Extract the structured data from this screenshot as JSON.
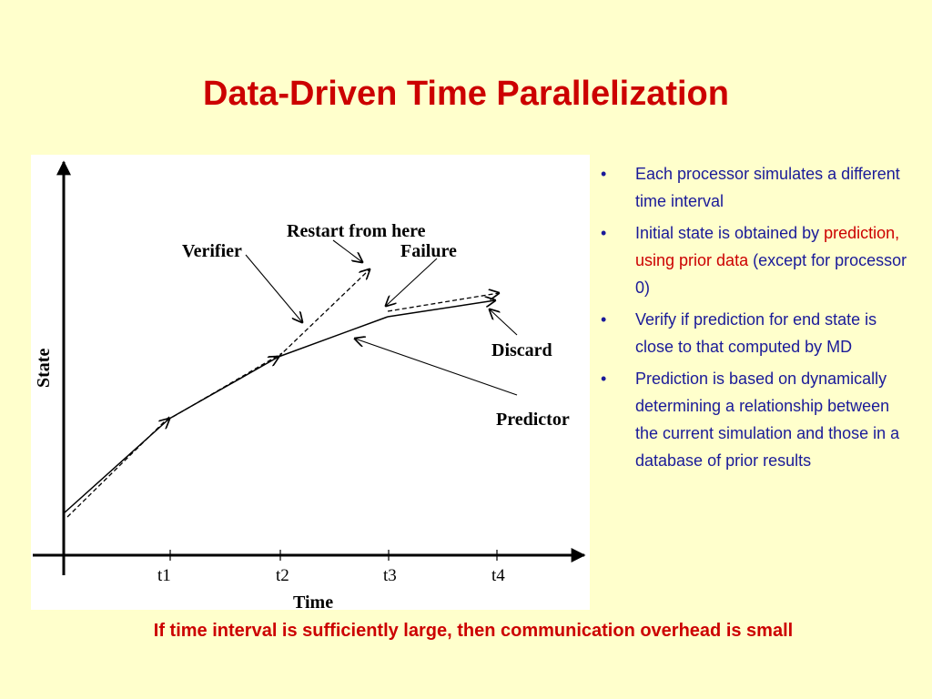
{
  "slide": {
    "title": "Data-Driven Time Parallelization",
    "footer": "If time interval is sufficiently large, then communication overhead is small"
  },
  "diagram": {
    "axis_x_label": "Time",
    "axis_y_label": "State",
    "ticks": [
      "t1",
      "t2",
      "t3",
      "t4"
    ],
    "labels": {
      "verifier": "Verifier",
      "restart": "Restart from here",
      "failure": "Failure",
      "discard": "Discard",
      "predictor": "Predictor"
    }
  },
  "bullets": [
    {
      "text": "Each processor simulates a different time interval"
    },
    {
      "pre": "Initial state is obtained by ",
      "highlight": "prediction, using prior data",
      "post": " (except for processor 0)"
    },
    {
      "text": "Verify if prediction for end state is close to that computed by MD"
    },
    {
      "text": "Prediction is based on dynamically determining a relationship between the current simulation and those in a database of prior results"
    }
  ],
  "colors": {
    "title": "#cc0000",
    "bullet_text": "#1a1a99",
    "highlight": "#cc0000",
    "background": "#ffffcc"
  }
}
